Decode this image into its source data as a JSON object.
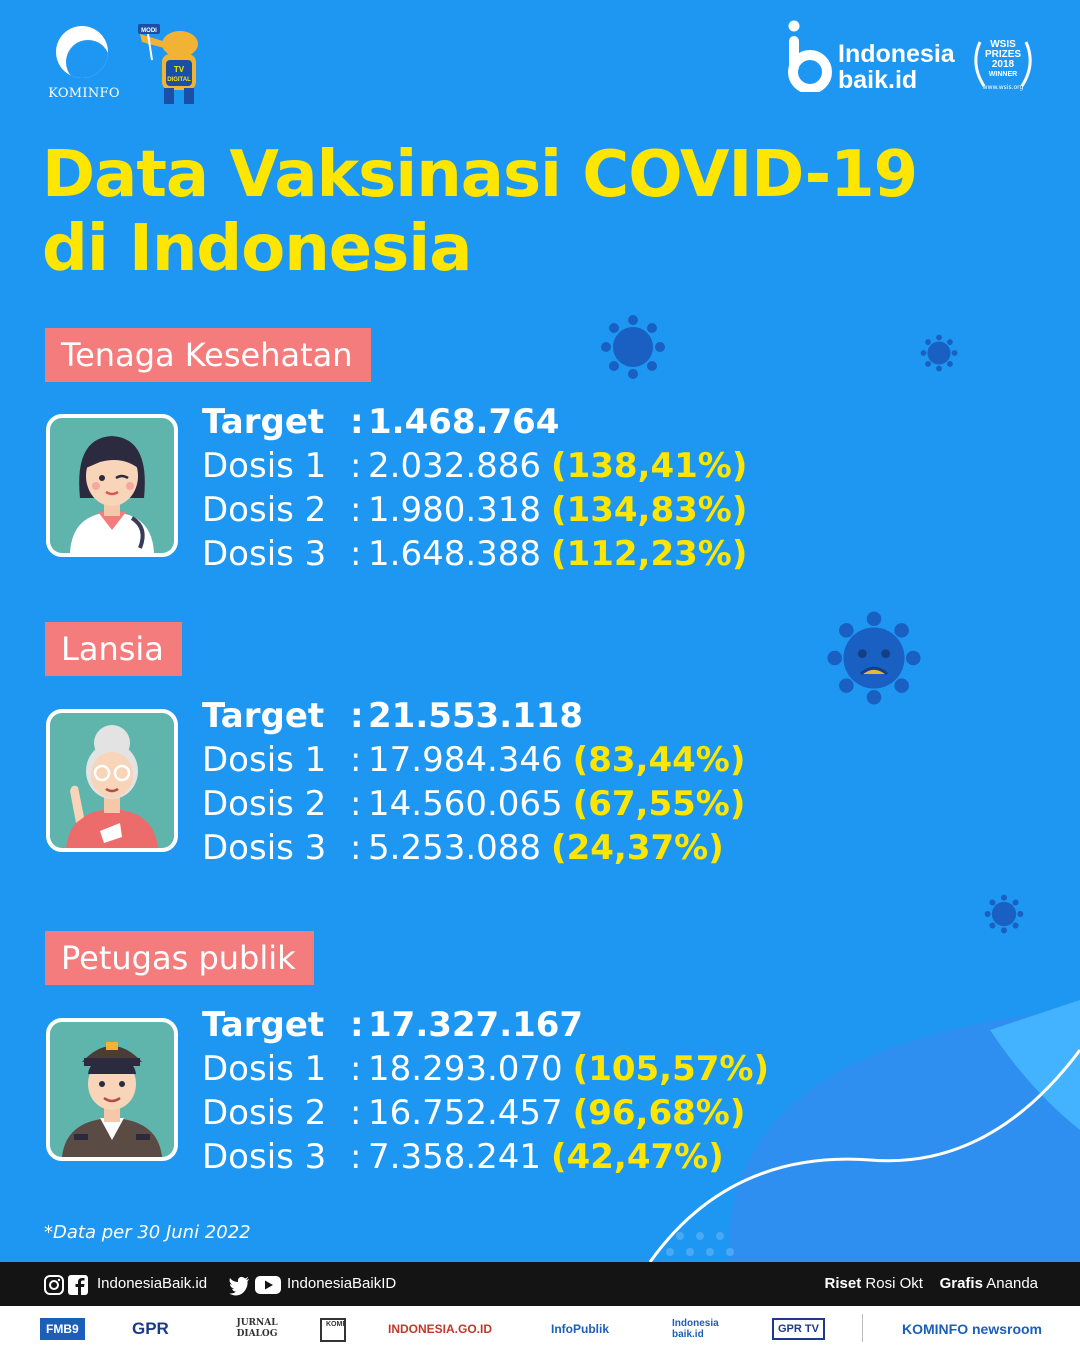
{
  "header": {
    "kominfo_label": "KOMINFO",
    "mascot_text": "TV DIGITAL",
    "mascot_badge": "MODI",
    "brand_line1": "Indonesia",
    "brand_line2": "baik.id",
    "award_line1": "WSIS",
    "award_line2": "PRIZES",
    "award_line3": "2018",
    "award_line4": "WINNER",
    "award_sub": "www.wsis.org"
  },
  "title": {
    "line1": "Data Vaksinasi COVID-19",
    "line2": "di Indonesia"
  },
  "groups": [
    {
      "label": "Tenaga Kesehatan",
      "avatar": "doctor-avatar",
      "rows": [
        {
          "key": "Target",
          "sep": ":",
          "value": "1.468.764",
          "pct": ""
        },
        {
          "key": "Dosis 1",
          "sep": ":",
          "value": "2.032.886",
          "pct": "(138,41%)"
        },
        {
          "key": "Dosis 2",
          "sep": ":",
          "value": "1.980.318",
          "pct": "(134,83%)"
        },
        {
          "key": "Dosis 3",
          "sep": ":",
          "value": "1.648.388",
          "pct": "(112,23%)"
        }
      ]
    },
    {
      "label": "Lansia",
      "avatar": "elderly-avatar",
      "rows": [
        {
          "key": "Target",
          "sep": ":",
          "value": "21.553.118",
          "pct": ""
        },
        {
          "key": "Dosis 1",
          "sep": ":",
          "value": "17.984.346",
          "pct": "(83,44%)"
        },
        {
          "key": "Dosis 2",
          "sep": ":",
          "value": "14.560.065",
          "pct": "(67,55%)"
        },
        {
          "key": "Dosis 3",
          "sep": ":",
          "value": "5.253.088",
          "pct": "(24,37%)"
        }
      ]
    },
    {
      "label": "Petugas publik",
      "avatar": "police-avatar",
      "rows": [
        {
          "key": "Target",
          "sep": ":",
          "value": "17.327.167",
          "pct": ""
        },
        {
          "key": "Dosis 1",
          "sep": ":",
          "value": "18.293.070",
          "pct": "(105,57%)"
        },
        {
          "key": "Dosis 2",
          "sep": ":",
          "value": "16.752.457",
          "pct": "(96,68%)"
        },
        {
          "key": "Dosis 3",
          "sep": ":",
          "value": "7.358.241",
          "pct": "(42,47%)"
        }
      ]
    }
  ],
  "footnote": "*Data per 30 Juni 2022",
  "footer": {
    "handle_left": "IndonesiaBaik.id",
    "handle_right": "IndonesiaBaikID",
    "riset_label": "Riset",
    "riset_name": "Rosi Okt",
    "grafis_label": "Grafis",
    "grafis_name": "Ananda"
  },
  "partners": [
    "FMB9",
    "GPR",
    "JURNAL DIALOG",
    "KOMPAK",
    "INDONESIA.GO.ID",
    "InfoPublik",
    "Indonesia baik.id",
    "GPR TV",
    "KOMINFO newsroom"
  ],
  "colors": {
    "background": "#1e97f3",
    "title": "#ffe600",
    "label_bg": "#f47c7c",
    "percent": "#ffe600",
    "virus": "#1a5fc2"
  }
}
